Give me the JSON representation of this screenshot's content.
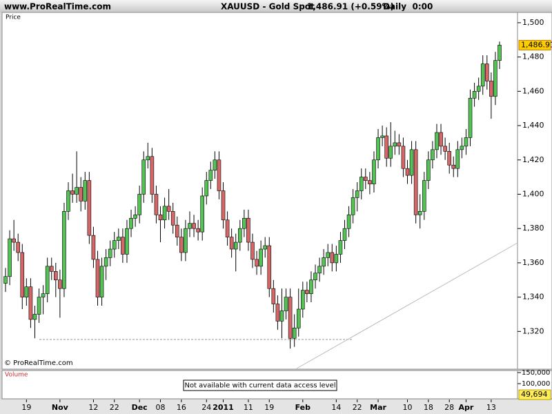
{
  "header": {
    "site": "www.ProRealTime.com"
  },
  "chart_data": {
    "type": "candlestick",
    "title": "XAUUSD - Gold Spot",
    "last_price_label": "1,486.91 (+0.59%)",
    "timeframe": "Daily  0:00",
    "pane_label": "Price",
    "copyright": "© ProRealTime.com",
    "open": [
      1348,
      1352,
      1374,
      1372,
      1366,
      1340,
      1346,
      1327,
      1330,
      1340,
      1342,
      1358,
      1355,
      1350,
      1345,
      1390,
      1402,
      1400,
      1404,
      1396,
      1408,
      1376,
      1362,
      1340,
      1358,
      1363,
      1368,
      1373,
      1375,
      1365,
      1380,
      1386,
      1388,
      1400,
      1420,
      1422,
      1400,
      1388,
      1385,
      1393,
      1390,
      1382,
      1375,
      1366,
      1380,
      1383,
      1380,
      1378,
      1399,
      1408,
      1414,
      1420,
      1402,
      1385,
      1375,
      1368,
      1372,
      1380,
      1386,
      1372,
      1362,
      1358,
      1368,
      1370,
      1345,
      1336,
      1326,
      1332,
      1340,
      1316,
      1322,
      1333,
      1344,
      1342,
      1350,
      1354,
      1358,
      1363,
      1366,
      1360,
      1365,
      1373,
      1380,
      1388,
      1398,
      1402,
      1410,
      1408,
      1406,
      1420,
      1433,
      1434,
      1421,
      1428,
      1430,
      1428,
      1415,
      1411,
      1426,
      1388,
      1390,
      1408,
      1420,
      1426,
      1436,
      1428,
      1425,
      1417,
      1415,
      1426,
      1428,
      1433,
      1456,
      1460,
      1463,
      1476,
      1466,
      1457,
      1478
    ],
    "high": [
      1357,
      1379,
      1385,
      1377,
      1371,
      1351,
      1351,
      1335,
      1345,
      1347,
      1363,
      1363,
      1360,
      1356,
      1395,
      1407,
      1412,
      1425,
      1410,
      1413,
      1413,
      1381,
      1367,
      1363,
      1368,
      1373,
      1378,
      1380,
      1380,
      1385,
      1391,
      1393,
      1405,
      1425,
      1430,
      1427,
      1405,
      1393,
      1398,
      1403,
      1395,
      1387,
      1380,
      1385,
      1390,
      1388,
      1385,
      1404,
      1413,
      1419,
      1425,
      1425,
      1407,
      1390,
      1380,
      1377,
      1385,
      1391,
      1391,
      1377,
      1367,
      1373,
      1375,
      1375,
      1350,
      1341,
      1345,
      1345,
      1345,
      1330,
      1345,
      1349,
      1349,
      1355,
      1359,
      1363,
      1368,
      1371,
      1371,
      1370,
      1378,
      1385,
      1393,
      1403,
      1407,
      1415,
      1415,
      1413,
      1425,
      1438,
      1440,
      1439,
      1442,
      1437,
      1435,
      1433,
      1420,
      1431,
      1431,
      1400,
      1413,
      1425,
      1431,
      1441,
      1441,
      1433,
      1430,
      1422,
      1431,
      1433,
      1438,
      1461,
      1465,
      1468,
      1481,
      1481,
      1471,
      1483,
      1489
    ],
    "low": [
      1343,
      1347,
      1367,
      1361,
      1333,
      1335,
      1322,
      1316,
      1325,
      1330,
      1337,
      1350,
      1340,
      1328,
      1340,
      1385,
      1395,
      1395,
      1390,
      1391,
      1371,
      1357,
      1335,
      1335,
      1350,
      1358,
      1363,
      1368,
      1360,
      1360,
      1375,
      1381,
      1383,
      1395,
      1415,
      1395,
      1383,
      1372,
      1380,
      1385,
      1377,
      1370,
      1361,
      1361,
      1375,
      1375,
      1373,
      1373,
      1394,
      1403,
      1409,
      1397,
      1380,
      1370,
      1363,
      1355,
      1367,
      1375,
      1367,
      1357,
      1353,
      1353,
      1363,
      1340,
      1331,
      1321,
      1316,
      1327,
      1310,
      1311,
      1317,
      1328,
      1337,
      1337,
      1345,
      1349,
      1353,
      1358,
      1355,
      1355,
      1360,
      1368,
      1375,
      1383,
      1390,
      1397,
      1403,
      1400,
      1401,
      1415,
      1428,
      1416,
      1416,
      1423,
      1423,
      1410,
      1406,
      1406,
      1383,
      1380,
      1385,
      1403,
      1415,
      1421,
      1423,
      1420,
      1412,
      1410,
      1410,
      1421,
      1423,
      1428,
      1451,
      1455,
      1458,
      1461,
      1444,
      1452,
      1473
    ],
    "close": [
      1352,
      1374,
      1372,
      1366,
      1340,
      1346,
      1327,
      1330,
      1340,
      1342,
      1358,
      1355,
      1350,
      1345,
      1390,
      1402,
      1400,
      1404,
      1396,
      1408,
      1376,
      1362,
      1340,
      1358,
      1363,
      1368,
      1373,
      1375,
      1365,
      1380,
      1386,
      1388,
      1400,
      1420,
      1422,
      1400,
      1388,
      1385,
      1393,
      1390,
      1382,
      1375,
      1366,
      1380,
      1383,
      1380,
      1378,
      1399,
      1408,
      1414,
      1420,
      1402,
      1385,
      1375,
      1368,
      1372,
      1380,
      1386,
      1372,
      1362,
      1358,
      1368,
      1370,
      1345,
      1336,
      1326,
      1332,
      1340,
      1316,
      1322,
      1333,
      1344,
      1342,
      1350,
      1354,
      1358,
      1363,
      1366,
      1360,
      1365,
      1373,
      1380,
      1388,
      1398,
      1402,
      1410,
      1408,
      1406,
      1420,
      1433,
      1434,
      1421,
      1428,
      1430,
      1428,
      1415,
      1411,
      1426,
      1388,
      1390,
      1408,
      1420,
      1426,
      1436,
      1428,
      1425,
      1417,
      1415,
      1426,
      1428,
      1433,
      1456,
      1460,
      1463,
      1476,
      1466,
      1457,
      1478,
      1486.91
    ],
    "up_color": "#55c255",
    "down_color": "#d46868",
    "last_value_label": "1,486.91",
    "xlim": [
      0,
      118
    ],
    "xticks": [
      {
        "value": 5,
        "label": "19"
      },
      {
        "value": 13,
        "label": "Nov"
      },
      {
        "value": 21,
        "label": "12"
      },
      {
        "value": 26,
        "label": "22"
      },
      {
        "value": 32,
        "label": "Dec"
      },
      {
        "value": 37,
        "label": "08"
      },
      {
        "value": 42,
        "label": "16"
      },
      {
        "value": 48,
        "label": "24"
      },
      {
        "value": 52,
        "label": "2011"
      },
      {
        "value": 58,
        "label": "11"
      },
      {
        "value": 63,
        "label": "19"
      },
      {
        "value": 71,
        "label": "Feb"
      },
      {
        "value": 79,
        "label": "14"
      },
      {
        "value": 84,
        "label": "22"
      },
      {
        "value": 89,
        "label": "Mar"
      },
      {
        "value": 96,
        "label": "10"
      },
      {
        "value": 101,
        "label": "18"
      },
      {
        "value": 106,
        "label": "28"
      },
      {
        "value": 110,
        "label": "Apr"
      },
      {
        "value": 116,
        "label": "13"
      }
    ],
    "ylim": [
      1298,
      1506
    ],
    "yticks": [
      {
        "value": 1320,
        "label": "1,320"
      },
      {
        "value": 1340,
        "label": "1,340"
      },
      {
        "value": 1360,
        "label": "1,360"
      },
      {
        "value": 1380,
        "label": "1,380"
      },
      {
        "value": 1400,
        "label": "1,400"
      },
      {
        "value": 1420,
        "label": "1,420"
      },
      {
        "value": 1440,
        "label": "1,440"
      },
      {
        "value": 1460,
        "label": "1,460"
      },
      {
        "value": 1480,
        "label": "1,480"
      },
      {
        "value": 1500,
        "label": "1,500"
      }
    ],
    "volume": {
      "label": "Volume",
      "message": "Not available with current data access level",
      "ylim": [
        31250,
        159375
      ],
      "yticks": [
        {
          "value": 150000,
          "label": "150,000"
        },
        {
          "value": 100000,
          "label": "100,000"
        }
      ],
      "last_value": 49694,
      "last_value_label": "49,694"
    }
  }
}
